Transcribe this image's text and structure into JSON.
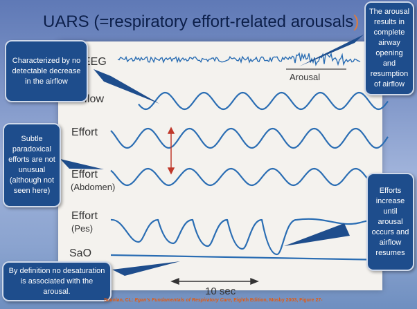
{
  "slide": {
    "title": "UARS (=respiratory effort-related arousals",
    "title_close": ")"
  },
  "traces": {
    "eeg": "EEG",
    "arousal": "Arousal",
    "airflow": "Airflow",
    "effort1": "Effort",
    "effort2": "Effort",
    "effort2_sub": "(Abdomen)",
    "effort3": "Effort",
    "effort3_sub": "(Pes)",
    "sao2": "SaO",
    "scale": "10 sec"
  },
  "callouts": {
    "top_left": "Characterized by no detectable decrease in the airflow",
    "mid_left": "Subtle paradoxical efforts are not unusual (although not seen here)",
    "bottom_left": "By definition no desaturation is associated with the arousal.",
    "top_right": "The arousal results in complete airway opening and resumption of airflow",
    "bottom_right": "Efforts increase until arousal occurs and airflow resumes"
  },
  "citation": {
    "prefix": "Scanlan, CL: ",
    "book": "Egan's Fundamentals of Respiratory Care",
    "suffix": ", Eighth Edition, Mosby 2003, Figure 27-"
  },
  "colors": {
    "callout_bg": "#1e4d8c",
    "trace": "#2a6db3",
    "arrow": "#c0392b"
  }
}
